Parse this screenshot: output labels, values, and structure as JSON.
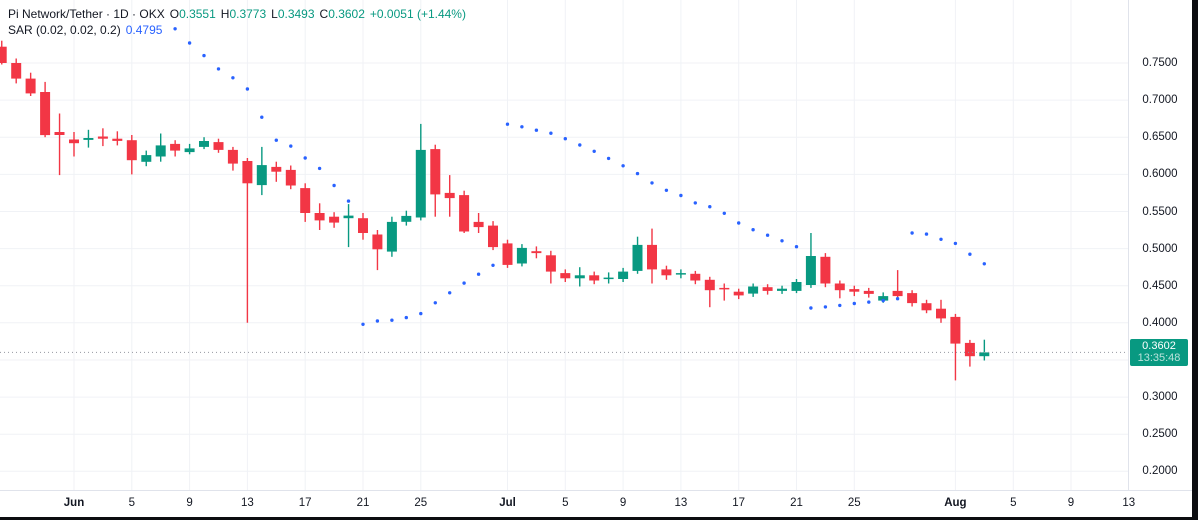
{
  "legend": {
    "symbol_line": {
      "title": "Pi Network/Tether · 1D · OKX",
      "o_label": "O",
      "o": "0.3551",
      "h_label": "H",
      "h": "0.3773",
      "l_label": "L",
      "l": "0.3493",
      "c_label": "C",
      "c": "0.3602",
      "change": "+0.0051 (+1.44%)"
    },
    "indicator_line": {
      "name": "SAR (0.02, 0.02, 0.2)",
      "value": "0.4795"
    }
  },
  "price_axis": {
    "unit": "USDT",
    "labels": [
      {
        "text": "0.7500",
        "value": 0.75
      },
      {
        "text": "0.7000",
        "value": 0.7
      },
      {
        "text": "0.6500",
        "value": 0.65
      },
      {
        "text": "0.6000",
        "value": 0.6
      },
      {
        "text": "0.5500",
        "value": 0.55
      },
      {
        "text": "0.5000",
        "value": 0.5
      },
      {
        "text": "0.4500",
        "value": 0.45
      },
      {
        "text": "0.4000",
        "value": 0.4
      },
      {
        "text": "0.3000",
        "value": 0.3
      },
      {
        "text": "0.2500",
        "value": 0.25
      },
      {
        "text": "0.2000",
        "value": 0.2
      }
    ],
    "badge": {
      "price": "0.3602",
      "time": "13:35:48"
    }
  },
  "time_axis": {
    "ticks": [
      {
        "label": "Jun",
        "i": 5,
        "bold": true
      },
      {
        "label": "5",
        "i": 9
      },
      {
        "label": "9",
        "i": 13
      },
      {
        "label": "13",
        "i": 17
      },
      {
        "label": "17",
        "i": 21
      },
      {
        "label": "21",
        "i": 25
      },
      {
        "label": "25",
        "i": 29
      },
      {
        "label": "Jul",
        "i": 35,
        "bold": true
      },
      {
        "label": "5",
        "i": 39
      },
      {
        "label": "9",
        "i": 43
      },
      {
        "label": "13",
        "i": 47
      },
      {
        "label": "17",
        "i": 51
      },
      {
        "label": "21",
        "i": 55
      },
      {
        "label": "25",
        "i": 59
      },
      {
        "label": "Aug",
        "i": 66,
        "bold": true
      },
      {
        "label": "5",
        "i": 70
      },
      {
        "label": "9",
        "i": 74
      },
      {
        "label": "13",
        "i": 78
      }
    ]
  },
  "colors": {
    "up": "#089981",
    "down": "#F23645",
    "sar_dot": "#2962FF",
    "grid": "#F0F2F6",
    "price_line": "#9598A1",
    "badge_bg": "#089981",
    "axis_text": "#131722",
    "legend_value": "#089981",
    "indicator_value": "#2962FF"
  },
  "chart_data": {
    "type": "candlestick",
    "title": "Pi Network/Tether · 1D · OKX with Parabolic SAR (0.02, 0.02, 0.2)",
    "ylabel": "USDT",
    "y_visible_range": [
      0.1745,
      0.8349
    ],
    "y_gridline_values": [
      0.75,
      0.7,
      0.65,
      0.6,
      0.55,
      0.5,
      0.45,
      0.4,
      0.35,
      0.3,
      0.25,
      0.2
    ],
    "grid": true,
    "last_price": 0.3602,
    "last_price_time": "13:35:48",
    "candles": [
      {
        "date": "May 27",
        "o": 0.772,
        "h": 0.78,
        "l": 0.748,
        "c": 0.75
      },
      {
        "date": "May 28",
        "o": 0.75,
        "h": 0.756,
        "l": 0.7225,
        "c": 0.729
      },
      {
        "date": "May 29",
        "o": 0.729,
        "h": 0.737,
        "l": 0.7055,
        "c": 0.709
      },
      {
        "date": "May 30",
        "o": 0.711,
        "h": 0.7245,
        "l": 0.65,
        "c": 0.653
      },
      {
        "date": "May 31",
        "o": 0.657,
        "h": 0.682,
        "l": 0.599,
        "c": 0.653
      },
      {
        "date": "Jun 1",
        "o": 0.647,
        "h": 0.657,
        "l": 0.624,
        "c": 0.642
      },
      {
        "date": "Jun 2",
        "o": 0.6465,
        "h": 0.66,
        "l": 0.636,
        "c": 0.649
      },
      {
        "date": "Jun 3",
        "o": 0.651,
        "h": 0.662,
        "l": 0.638,
        "c": 0.648
      },
      {
        "date": "Jun 4",
        "o": 0.648,
        "h": 0.658,
        "l": 0.639,
        "c": 0.645
      },
      {
        "date": "Jun 5",
        "o": 0.646,
        "h": 0.653,
        "l": 0.6,
        "c": 0.619
      },
      {
        "date": "Jun 6",
        "o": 0.617,
        "h": 0.632,
        "l": 0.611,
        "c": 0.626
      },
      {
        "date": "Jun 7",
        "o": 0.624,
        "h": 0.655,
        "l": 0.617,
        "c": 0.639
      },
      {
        "date": "Jun 8",
        "o": 0.641,
        "h": 0.646,
        "l": 0.624,
        "c": 0.632
      },
      {
        "date": "Jun 9",
        "o": 0.63,
        "h": 0.641,
        "l": 0.627,
        "c": 0.635
      },
      {
        "date": "Jun 10",
        "o": 0.637,
        "h": 0.65,
        "l": 0.634,
        "c": 0.645
      },
      {
        "date": "Jun 11",
        "o": 0.6435,
        "h": 0.648,
        "l": 0.629,
        "c": 0.633
      },
      {
        "date": "Jun 12",
        "o": 0.633,
        "h": 0.637,
        "l": 0.605,
        "c": 0.6145
      },
      {
        "date": "Jun 13",
        "o": 0.618,
        "h": 0.622,
        "l": 0.4,
        "c": 0.588
      },
      {
        "date": "Jun 14",
        "o": 0.5855,
        "h": 0.637,
        "l": 0.572,
        "c": 0.6125
      },
      {
        "date": "Jun 15",
        "o": 0.61,
        "h": 0.617,
        "l": 0.59,
        "c": 0.6035
      },
      {
        "date": "Jun 16",
        "o": 0.606,
        "h": 0.612,
        "l": 0.58,
        "c": 0.585
      },
      {
        "date": "Jun 17",
        "o": 0.5815,
        "h": 0.588,
        "l": 0.536,
        "c": 0.548
      },
      {
        "date": "Jun 18",
        "o": 0.548,
        "h": 0.561,
        "l": 0.525,
        "c": 0.538
      },
      {
        "date": "Jun 19",
        "o": 0.543,
        "h": 0.549,
        "l": 0.528,
        "c": 0.535
      },
      {
        "date": "Jun 20",
        "o": 0.541,
        "h": 0.56,
        "l": 0.502,
        "c": 0.5445
      },
      {
        "date": "Jun 21",
        "o": 0.541,
        "h": 0.548,
        "l": 0.512,
        "c": 0.521
      },
      {
        "date": "Jun 22",
        "o": 0.519,
        "h": 0.525,
        "l": 0.471,
        "c": 0.499
      },
      {
        "date": "Jun 23",
        "o": 0.496,
        "h": 0.543,
        "l": 0.489,
        "c": 0.536
      },
      {
        "date": "Jun 24",
        "o": 0.536,
        "h": 0.551,
        "l": 0.531,
        "c": 0.544
      },
      {
        "date": "Jun 25",
        "o": 0.542,
        "h": 0.668,
        "l": 0.538,
        "c": 0.633
      },
      {
        "date": "Jun 26",
        "o": 0.634,
        "h": 0.64,
        "l": 0.543,
        "c": 0.573
      },
      {
        "date": "Jun 27",
        "o": 0.575,
        "h": 0.599,
        "l": 0.543,
        "c": 0.568
      },
      {
        "date": "Jun 28",
        "o": 0.572,
        "h": 0.578,
        "l": 0.521,
        "c": 0.523
      },
      {
        "date": "Jun 29",
        "o": 0.536,
        "h": 0.548,
        "l": 0.521,
        "c": 0.529
      },
      {
        "date": "Jun 30",
        "o": 0.531,
        "h": 0.537,
        "l": 0.498,
        "c": 0.502
      },
      {
        "date": "Jul 1",
        "o": 0.507,
        "h": 0.512,
        "l": 0.474,
        "c": 0.478
      },
      {
        "date": "Jul 2",
        "o": 0.48,
        "h": 0.506,
        "l": 0.476,
        "c": 0.501
      },
      {
        "date": "Jul 3",
        "o": 0.4965,
        "h": 0.503,
        "l": 0.487,
        "c": 0.494
      },
      {
        "date": "Jul 4",
        "o": 0.491,
        "h": 0.497,
        "l": 0.453,
        "c": 0.469
      },
      {
        "date": "Jul 5",
        "o": 0.467,
        "h": 0.472,
        "l": 0.455,
        "c": 0.46
      },
      {
        "date": "Jul 6",
        "o": 0.46,
        "h": 0.475,
        "l": 0.449,
        "c": 0.464
      },
      {
        "date": "Jul 7",
        "o": 0.464,
        "h": 0.469,
        "l": 0.452,
        "c": 0.457
      },
      {
        "date": "Jul 8",
        "o": 0.459,
        "h": 0.468,
        "l": 0.453,
        "c": 0.461
      },
      {
        "date": "Jul 9",
        "o": 0.459,
        "h": 0.474,
        "l": 0.455,
        "c": 0.469
      },
      {
        "date": "Jul 10",
        "o": 0.47,
        "h": 0.516,
        "l": 0.466,
        "c": 0.505
      },
      {
        "date": "Jul 11",
        "o": 0.505,
        "h": 0.527,
        "l": 0.453,
        "c": 0.472
      },
      {
        "date": "Jul 12",
        "o": 0.472,
        "h": 0.477,
        "l": 0.458,
        "c": 0.464
      },
      {
        "date": "Jul 13",
        "o": 0.465,
        "h": 0.472,
        "l": 0.46,
        "c": 0.467
      },
      {
        "date": "Jul 14",
        "o": 0.466,
        "h": 0.47,
        "l": 0.452,
        "c": 0.457
      },
      {
        "date": "Jul 15",
        "o": 0.458,
        "h": 0.462,
        "l": 0.421,
        "c": 0.444
      },
      {
        "date": "Jul 16",
        "o": 0.447,
        "h": 0.453,
        "l": 0.43,
        "c": 0.445
      },
      {
        "date": "Jul 17",
        "o": 0.442,
        "h": 0.446,
        "l": 0.432,
        "c": 0.437
      },
      {
        "date": "Jul 18",
        "o": 0.4395,
        "h": 0.453,
        "l": 0.435,
        "c": 0.449
      },
      {
        "date": "Jul 19",
        "o": 0.448,
        "h": 0.452,
        "l": 0.438,
        "c": 0.443
      },
      {
        "date": "Jul 20",
        "o": 0.443,
        "h": 0.45,
        "l": 0.439,
        "c": 0.446
      },
      {
        "date": "Jul 21",
        "o": 0.443,
        "h": 0.459,
        "l": 0.44,
        "c": 0.455
      },
      {
        "date": "Jul 22",
        "o": 0.451,
        "h": 0.521,
        "l": 0.447,
        "c": 0.49
      },
      {
        "date": "Jul 23",
        "o": 0.489,
        "h": 0.494,
        "l": 0.448,
        "c": 0.453
      },
      {
        "date": "Jul 24",
        "o": 0.453,
        "h": 0.457,
        "l": 0.433,
        "c": 0.444
      },
      {
        "date": "Jul 25",
        "o": 0.4455,
        "h": 0.45,
        "l": 0.436,
        "c": 0.442
      },
      {
        "date": "Jul 26",
        "o": 0.443,
        "h": 0.447,
        "l": 0.434,
        "c": 0.439
      },
      {
        "date": "Jul 27",
        "o": 0.43,
        "h": 0.441,
        "l": 0.427,
        "c": 0.436
      },
      {
        "date": "Jul 28",
        "o": 0.443,
        "h": 0.471,
        "l": 0.432,
        "c": 0.436
      },
      {
        "date": "Jul 29",
        "o": 0.44,
        "h": 0.444,
        "l": 0.422,
        "c": 0.4265
      },
      {
        "date": "Jul 30",
        "o": 0.4265,
        "h": 0.431,
        "l": 0.413,
        "c": 0.417
      },
      {
        "date": "Jul 31",
        "o": 0.419,
        "h": 0.431,
        "l": 0.4,
        "c": 0.406
      },
      {
        "date": "Aug 1",
        "o": 0.408,
        "h": 0.412,
        "l": 0.3225,
        "c": 0.372
      },
      {
        "date": "Aug 2",
        "o": 0.373,
        "h": 0.377,
        "l": 0.341,
        "c": 0.3551
      },
      {
        "date": "Aug 3",
        "o": 0.3551,
        "h": 0.3773,
        "l": 0.3493,
        "c": 0.3602
      }
    ],
    "sar": [
      {
        "date": "Jun 8",
        "i": 12,
        "value": 0.796,
        "position": "above"
      },
      {
        "date": "Jun 9",
        "i": 13,
        "value": 0.777,
        "position": "above"
      },
      {
        "date": "Jun 10",
        "i": 14,
        "value": 0.76,
        "position": "above"
      },
      {
        "date": "Jun 11",
        "i": 15,
        "value": 0.742,
        "position": "above"
      },
      {
        "date": "Jun 12",
        "i": 16,
        "value": 0.73,
        "position": "above"
      },
      {
        "date": "Jun 13",
        "i": 17,
        "value": 0.715,
        "position": "above"
      },
      {
        "date": "Jun 14",
        "i": 18,
        "value": 0.677,
        "position": "above"
      },
      {
        "date": "Jun 15",
        "i": 19,
        "value": 0.646,
        "position": "above"
      },
      {
        "date": "Jun 16",
        "i": 20,
        "value": 0.638,
        "position": "above"
      },
      {
        "date": "Jun 17",
        "i": 21,
        "value": 0.622,
        "position": "above"
      },
      {
        "date": "Jun 18",
        "i": 22,
        "value": 0.608,
        "position": "above"
      },
      {
        "date": "Jun 19",
        "i": 23,
        "value": 0.585,
        "position": "above"
      },
      {
        "date": "Jun 20",
        "i": 24,
        "value": 0.564,
        "position": "above"
      },
      {
        "date": "Jun 21",
        "i": 25,
        "value": 0.398,
        "position": "below"
      },
      {
        "date": "Jun 22",
        "i": 26,
        "value": 0.4025,
        "position": "below"
      },
      {
        "date": "Jun 23",
        "i": 27,
        "value": 0.4035,
        "position": "below"
      },
      {
        "date": "Jun 24",
        "i": 28,
        "value": 0.407,
        "position": "below"
      },
      {
        "date": "Jun 25",
        "i": 29,
        "value": 0.4125,
        "position": "below"
      },
      {
        "date": "Jun 26",
        "i": 30,
        "value": 0.427,
        "position": "below"
      },
      {
        "date": "Jun 27",
        "i": 31,
        "value": 0.4405,
        "position": "below"
      },
      {
        "date": "Jun 28",
        "i": 32,
        "value": 0.4535,
        "position": "below"
      },
      {
        "date": "Jun 29",
        "i": 33,
        "value": 0.4655,
        "position": "below"
      },
      {
        "date": "Jun 30",
        "i": 34,
        "value": 0.4775,
        "position": "below"
      },
      {
        "date": "Jul 1",
        "i": 35,
        "value": 0.6675,
        "position": "above"
      },
      {
        "date": "Jul 2",
        "i": 36,
        "value": 0.664,
        "position": "above"
      },
      {
        "date": "Jul 3",
        "i": 37,
        "value": 0.6595,
        "position": "above"
      },
      {
        "date": "Jul 4",
        "i": 38,
        "value": 0.6555,
        "position": "above"
      },
      {
        "date": "Jul 5",
        "i": 39,
        "value": 0.648,
        "position": "above"
      },
      {
        "date": "Jul 6",
        "i": 40,
        "value": 0.6395,
        "position": "above"
      },
      {
        "date": "Jul 7",
        "i": 41,
        "value": 0.631,
        "position": "above"
      },
      {
        "date": "Jul 8",
        "i": 42,
        "value": 0.6215,
        "position": "above"
      },
      {
        "date": "Jul 9",
        "i": 43,
        "value": 0.6115,
        "position": "above"
      },
      {
        "date": "Jul 10",
        "i": 44,
        "value": 0.601,
        "position": "above"
      },
      {
        "date": "Jul 11",
        "i": 45,
        "value": 0.5885,
        "position": "above"
      },
      {
        "date": "Jul 12",
        "i": 46,
        "value": 0.5785,
        "position": "above"
      },
      {
        "date": "Jul 13",
        "i": 47,
        "value": 0.5715,
        "position": "above"
      },
      {
        "date": "Jul 14",
        "i": 48,
        "value": 0.5615,
        "position": "above"
      },
      {
        "date": "Jul 15",
        "i": 49,
        "value": 0.5565,
        "position": "above"
      },
      {
        "date": "Jul 16",
        "i": 50,
        "value": 0.5475,
        "position": "above"
      },
      {
        "date": "Jul 17",
        "i": 51,
        "value": 0.5345,
        "position": "above"
      },
      {
        "date": "Jul 18",
        "i": 52,
        "value": 0.5255,
        "position": "above"
      },
      {
        "date": "Jul 19",
        "i": 53,
        "value": 0.518,
        "position": "above"
      },
      {
        "date": "Jul 20",
        "i": 54,
        "value": 0.5105,
        "position": "above"
      },
      {
        "date": "Jul 21",
        "i": 55,
        "value": 0.5025,
        "position": "above"
      },
      {
        "date": "Jul 22",
        "i": 56,
        "value": 0.42,
        "position": "below"
      },
      {
        "date": "Jul 23",
        "i": 57,
        "value": 0.4215,
        "position": "below"
      },
      {
        "date": "Jul 24",
        "i": 58,
        "value": 0.4235,
        "position": "below"
      },
      {
        "date": "Jul 25",
        "i": 59,
        "value": 0.426,
        "position": "below"
      },
      {
        "date": "Jul 26",
        "i": 60,
        "value": 0.428,
        "position": "below"
      },
      {
        "date": "Jul 27",
        "i": 61,
        "value": 0.43,
        "position": "below"
      },
      {
        "date": "Jul 28",
        "i": 62,
        "value": 0.4325,
        "position": "below"
      },
      {
        "date": "Jul 29",
        "i": 63,
        "value": 0.521,
        "position": "above"
      },
      {
        "date": "Jul 30",
        "i": 64,
        "value": 0.5195,
        "position": "above"
      },
      {
        "date": "Jul 31",
        "i": 65,
        "value": 0.5125,
        "position": "above"
      },
      {
        "date": "Aug 1",
        "i": 66,
        "value": 0.507,
        "position": "above"
      },
      {
        "date": "Aug 2",
        "i": 67,
        "value": 0.4925,
        "position": "above"
      },
      {
        "date": "Aug 3",
        "i": 68,
        "value": 0.4795,
        "position": "above"
      }
    ]
  }
}
